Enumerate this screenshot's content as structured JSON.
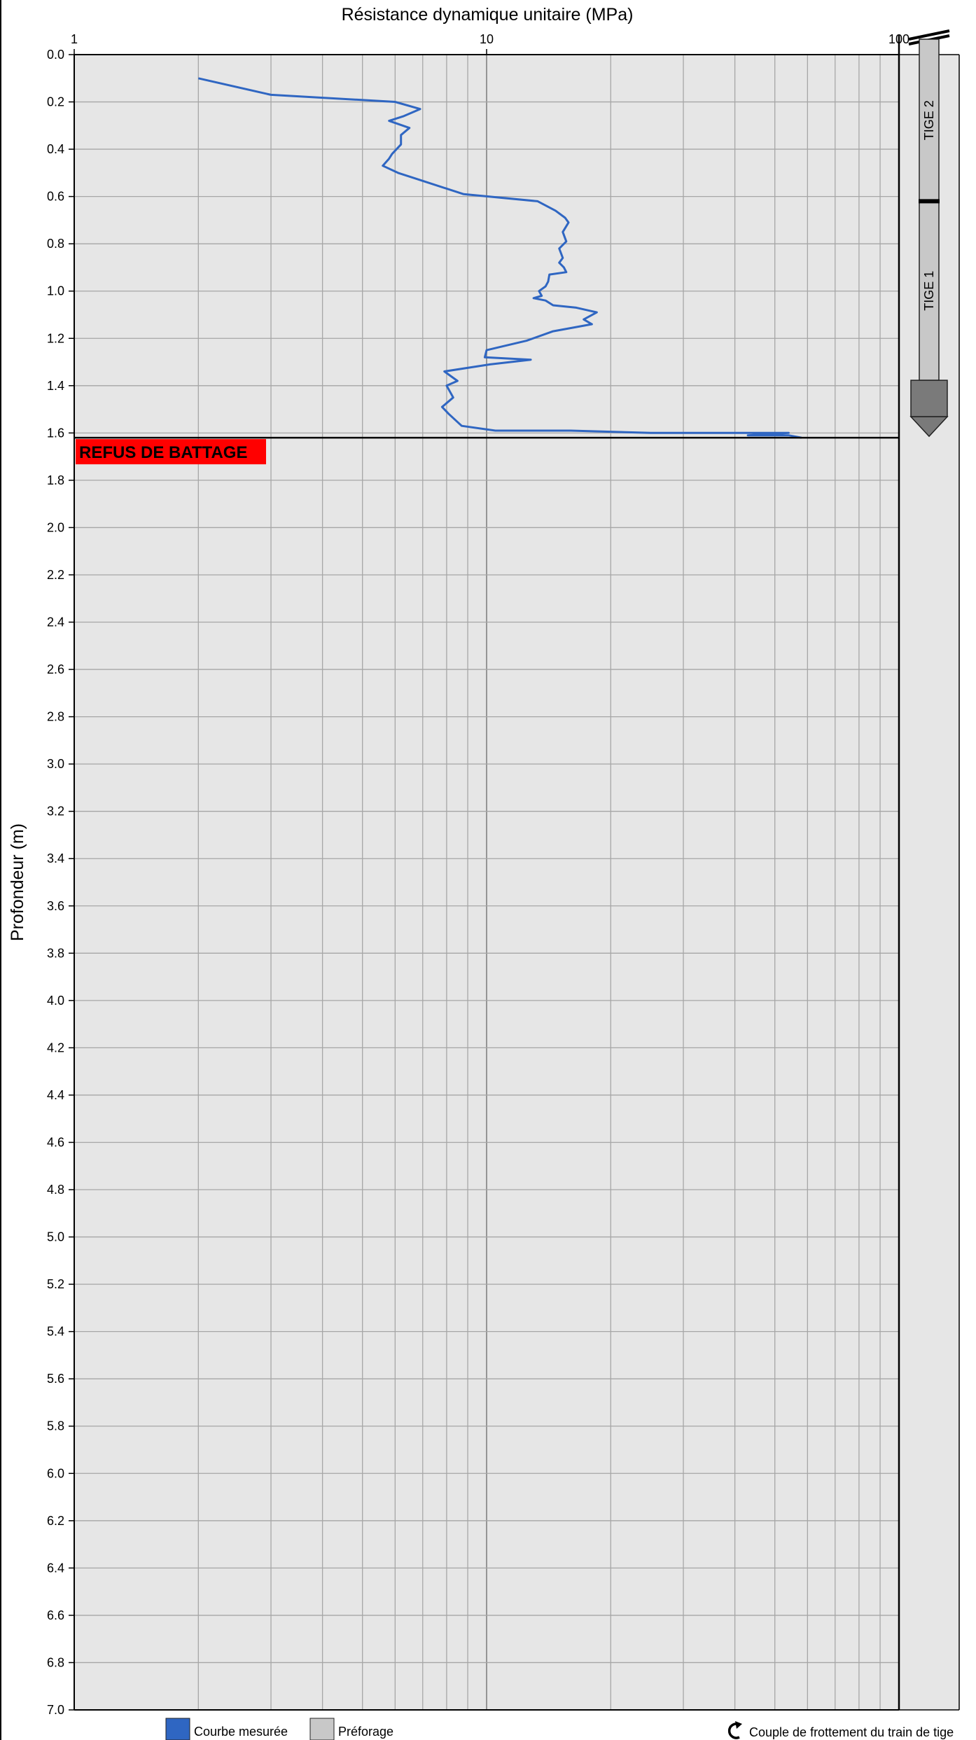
{
  "chart_data": {
    "type": "line",
    "title": "Résistance dynamique unitaire (MPa)",
    "xlabel": "Résistance dynamique unitaire (MPa)",
    "ylabel": "Profondeur (m)",
    "x_scale": "log",
    "xlim": [
      1,
      100
    ],
    "ylim": [
      0.0,
      7.0
    ],
    "y_inverted": true,
    "grid": true,
    "x_tick_labels": [
      "1",
      "10",
      "100"
    ],
    "y_tick_labels": [
      "0.0",
      "0.2",
      "0.4",
      "0.6",
      "0.8",
      "1.0",
      "1.2",
      "1.4",
      "1.6",
      "1.8",
      "2.0",
      "2.2",
      "2.4",
      "2.6",
      "2.8",
      "3.0",
      "3.2",
      "3.4",
      "3.6",
      "3.8",
      "4.0",
      "4.2",
      "4.4",
      "4.6",
      "4.8",
      "5.0",
      "5.2",
      "5.4",
      "5.6",
      "5.8",
      "6.0",
      "6.2",
      "6.4",
      "6.6",
      "6.8",
      "7.0"
    ],
    "series": [
      {
        "name": "Courbe mesurée",
        "color": "#2f66c2",
        "x": [
          2.0,
          3.0,
          6.0,
          6.9,
          6.3,
          5.8,
          6.5,
          6.2,
          6.2,
          5.9,
          5.8,
          5.6,
          6.1,
          8.8,
          13.3,
          14.7,
          15.5,
          15.8,
          15.3,
          15.6,
          15.0,
          15.3,
          15.0,
          15.4,
          15.6,
          14.2,
          14.1,
          13.9,
          13.4,
          13.6,
          13.0,
          13.9,
          14.5,
          16.5,
          18.5,
          17.2,
          18.0,
          14.5,
          12.5,
          10.0,
          9.9,
          12.8,
          10.2,
          7.9,
          8.5,
          8.0,
          8.3,
          7.8,
          8.1,
          8.7,
          10.5,
          16.0,
          25.0,
          40.0,
          52.0,
          54.0,
          43.0,
          54.0,
          58.0
        ],
        "y": [
          0.1,
          0.17,
          0.2,
          0.23,
          0.26,
          0.28,
          0.31,
          0.34,
          0.38,
          0.42,
          0.44,
          0.47,
          0.5,
          0.59,
          0.62,
          0.66,
          0.69,
          0.71,
          0.75,
          0.79,
          0.82,
          0.86,
          0.88,
          0.9,
          0.92,
          0.93,
          0.96,
          0.98,
          1.0,
          1.02,
          1.03,
          1.04,
          1.06,
          1.07,
          1.09,
          1.12,
          1.14,
          1.17,
          1.21,
          1.25,
          1.28,
          1.29,
          1.31,
          1.34,
          1.38,
          1.4,
          1.45,
          1.49,
          1.52,
          1.57,
          1.59,
          1.59,
          1.6,
          1.6,
          1.6,
          1.6,
          1.61,
          1.61,
          1.62
        ]
      }
    ],
    "refusal": {
      "label": "REFUS DE BATTAGE",
      "depth": 1.62,
      "color": "#ff0000"
    },
    "rods": {
      "labels": [
        "TIGE 2",
        "TIGE 1"
      ],
      "joint_depth": 0.62
    },
    "legend": {
      "placement": "bottom",
      "items": [
        {
          "label": "Courbe mesurée",
          "color": "#2f66c2"
        },
        {
          "label": "Préforage",
          "color": "#c8c8c8"
        },
        {
          "label": "Couple de frottement du train de tige",
          "icon": "rotation-arrow-icon"
        }
      ]
    }
  }
}
